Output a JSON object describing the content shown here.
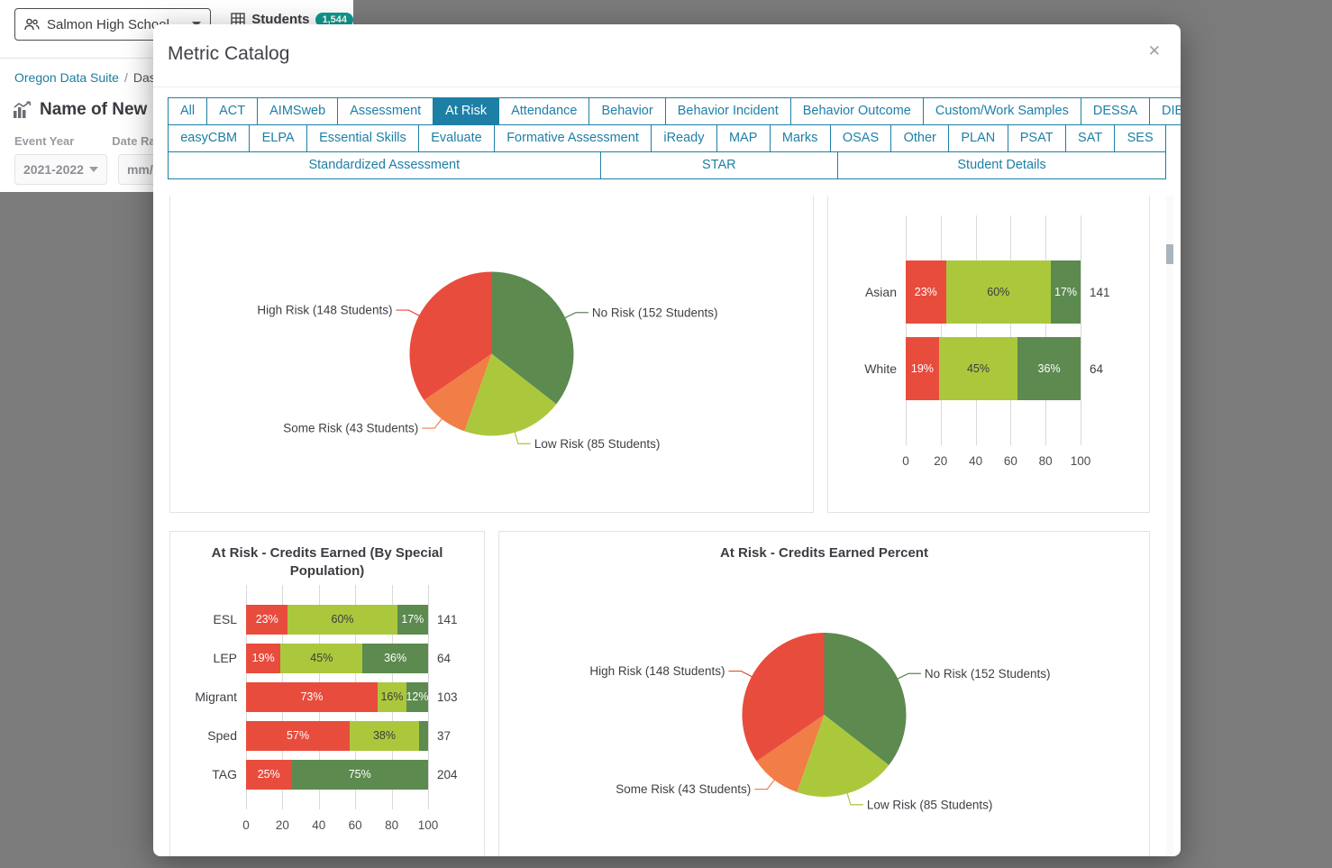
{
  "colors": {
    "accent_teal": "#1d7fa6",
    "risk_red": "#e84c3d",
    "risk_orange": "#f07e46",
    "risk_light_green": "#abc83c",
    "risk_dark_green": "#5c8a4f",
    "badge_teal": "#10998e",
    "backdrop_gray": "#7b7b7b"
  },
  "app": {
    "school_selector": {
      "value": "Salmon High School"
    },
    "nav_students": {
      "label": "Students",
      "badge": "1,544"
    },
    "breadcrumb": {
      "link": "Oregon Data Suite",
      "separator": "/",
      "current": "Das"
    },
    "page_title": "Name of New",
    "filters": {
      "event_year_label": "Event Year",
      "event_year_value": "2021-2022",
      "date_range_label": "Date Ra",
      "date_range_value": "mm/d"
    }
  },
  "modal": {
    "title": "Metric Catalog",
    "close_glyph": "✕",
    "tabs": {
      "active": "At Risk",
      "rows": [
        [
          "All",
          "ACT",
          "AIMSweb",
          "Assessment",
          "At Risk",
          "Attendance",
          "Behavior",
          "Behavior Incident",
          "Behavior Outcome",
          "Custom/Work Samples",
          "DESSA",
          "DIBELS"
        ],
        [
          "easyCBM",
          "ELPA",
          "Essential Skills",
          "Evaluate",
          "Formative Assessment",
          "iReady",
          "MAP",
          "Marks",
          "OSAS",
          "Other",
          "PLAN",
          "PSAT",
          "SAT",
          "SES"
        ],
        [
          "Standardized Assessment",
          "STAR",
          "Student Details"
        ]
      ]
    }
  },
  "chart_data": [
    {
      "id": "at-risk-pie",
      "type": "pie",
      "title": "",
      "slices": [
        {
          "label": "No Risk (152 Students)",
          "value": 152,
          "color": "#5c8a4f"
        },
        {
          "label": "Low Risk (85 Students)",
          "value": 85,
          "color": "#abc83c"
        },
        {
          "label": "Some Risk (43 Students)",
          "value": 43,
          "color": "#f07e46"
        },
        {
          "label": "High Risk (148 Students)",
          "value": 148,
          "color": "#e84c3d"
        }
      ]
    },
    {
      "id": "at-risk-credits-earned-by-race",
      "type": "stacked_bar_horizontal",
      "title": "",
      "xlim": [
        0,
        100
      ],
      "x_ticks": [
        0,
        20,
        40,
        60,
        80,
        100
      ],
      "rows": [
        {
          "category": "Asian",
          "total": 141,
          "segments": [
            {
              "pct": 23,
              "label": "23%",
              "color": "#e84c3d"
            },
            {
              "pct": 60,
              "label": "60%",
              "color": "#abc83c"
            },
            {
              "pct": 17,
              "label": "17%",
              "color": "#5c8a4f"
            }
          ]
        },
        {
          "category": "White",
          "total": 64,
          "segments": [
            {
              "pct": 19,
              "label": "19%",
              "color": "#e84c3d"
            },
            {
              "pct": 45,
              "label": "45%",
              "color": "#abc83c"
            },
            {
              "pct": 36,
              "label": "36%",
              "color": "#5c8a4f"
            }
          ]
        }
      ]
    },
    {
      "id": "at-risk-credits-earned-by-special-population",
      "type": "stacked_bar_horizontal",
      "title": "At Risk - Credits Earned (By Special Population)",
      "xlim": [
        0,
        100
      ],
      "x_ticks": [
        0,
        20,
        40,
        60,
        80,
        100
      ],
      "rows": [
        {
          "category": "ESL",
          "total": 141,
          "segments": [
            {
              "pct": 23,
              "label": "23%",
              "color": "#e84c3d"
            },
            {
              "pct": 60,
              "label": "60%",
              "color": "#abc83c"
            },
            {
              "pct": 17,
              "label": "17%",
              "color": "#5c8a4f"
            }
          ]
        },
        {
          "category": "LEP",
          "total": 64,
          "segments": [
            {
              "pct": 19,
              "label": "19%",
              "color": "#e84c3d"
            },
            {
              "pct": 45,
              "label": "45%",
              "color": "#abc83c"
            },
            {
              "pct": 36,
              "label": "36%",
              "color": "#5c8a4f"
            }
          ]
        },
        {
          "category": "Migrant",
          "total": 103,
          "segments": [
            {
              "pct": 73,
              "label": "73%",
              "color": "#e84c3d"
            },
            {
              "pct": 16,
              "label": "16%",
              "color": "#abc83c"
            },
            {
              "pct": 12,
              "label": "12%",
              "color": "#5c8a4f"
            }
          ]
        },
        {
          "category": "Sped",
          "total": 37,
          "segments": [
            {
              "pct": 57,
              "label": "57%",
              "color": "#e84c3d"
            },
            {
              "pct": 38,
              "label": "38%",
              "color": "#abc83c"
            },
            {
              "pct": 5,
              "label": "",
              "color": "#5c8a4f"
            }
          ]
        },
        {
          "category": "TAG",
          "total": 204,
          "segments": [
            {
              "pct": 25,
              "label": "25%",
              "color": "#e84c3d"
            },
            {
              "pct": 75,
              "label": "75%",
              "color": "#5c8a4f"
            }
          ]
        }
      ]
    },
    {
      "id": "at-risk-credits-earned-percent",
      "type": "pie",
      "title": "At Risk - Credits Earned Percent",
      "slices": [
        {
          "label": "No Risk (152 Students)",
          "value": 152,
          "color": "#5c8a4f"
        },
        {
          "label": "Low Risk (85 Students)",
          "value": 85,
          "color": "#abc83c"
        },
        {
          "label": "Some Risk (43 Students)",
          "value": 43,
          "color": "#f07e46"
        },
        {
          "label": "High Risk (148 Students)",
          "value": 148,
          "color": "#e84c3d"
        }
      ]
    }
  ]
}
